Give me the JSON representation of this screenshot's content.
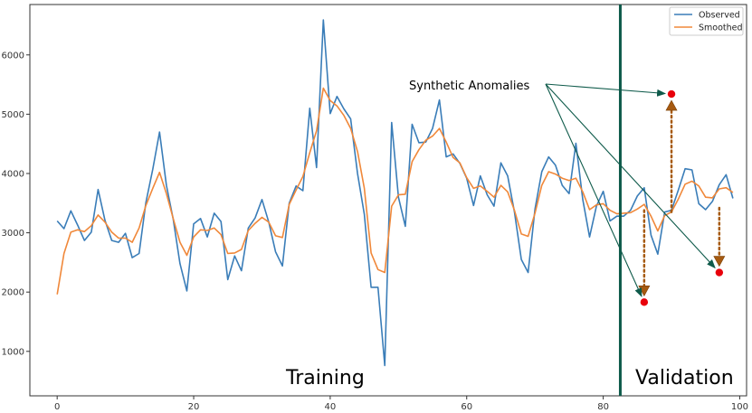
{
  "chart_data": {
    "type": "line",
    "title": "",
    "xlabel": "",
    "ylabel": "",
    "xlim": [
      -4,
      101
    ],
    "ylim": [
      250,
      6850
    ],
    "x_ticks": [
      0,
      20,
      40,
      60,
      80,
      100
    ],
    "y_ticks": [
      1000,
      2000,
      3000,
      4000,
      5000,
      6000
    ],
    "grid": false,
    "legend_position": "top-right",
    "x": [
      0,
      1,
      2,
      3,
      4,
      5,
      6,
      7,
      8,
      9,
      10,
      11,
      12,
      13,
      14,
      15,
      16,
      17,
      18,
      19,
      20,
      21,
      22,
      23,
      24,
      25,
      26,
      27,
      28,
      29,
      30,
      31,
      32,
      33,
      34,
      35,
      36,
      37,
      38,
      39,
      40,
      41,
      42,
      43,
      44,
      45,
      46,
      47,
      48,
      49,
      50,
      51,
      52,
      53,
      54,
      55,
      56,
      57,
      58,
      59,
      60,
      61,
      62,
      63,
      64,
      65,
      66,
      67,
      68,
      69,
      70,
      71,
      72,
      73,
      74,
      75,
      76,
      77,
      78,
      79,
      80,
      81,
      82,
      83,
      84,
      85,
      86,
      87,
      88,
      89,
      90,
      91,
      92,
      93,
      94,
      95,
      96,
      97,
      98,
      99
    ],
    "series": [
      {
        "name": "Observed",
        "color": "#3a7db8",
        "values": [
          3200,
          3070,
          3370,
          3130,
          2870,
          3010,
          3730,
          3210,
          2870,
          2840,
          2990,
          2580,
          2650,
          3510,
          4070,
          4700,
          3800,
          3230,
          2480,
          2020,
          3150,
          3240,
          2930,
          3330,
          3190,
          2210,
          2610,
          2360,
          3080,
          3250,
          3560,
          3180,
          2680,
          2440,
          3500,
          3790,
          3710,
          5100,
          4100,
          6590,
          5010,
          5300,
          5090,
          4920,
          4000,
          3310,
          2080,
          2080,
          760,
          4860,
          3600,
          3110,
          4830,
          4520,
          4530,
          4760,
          5240,
          4280,
          4330,
          4170,
          3920,
          3460,
          3960,
          3640,
          3450,
          4180,
          3960,
          3350,
          2550,
          2330,
          3400,
          4030,
          4280,
          4140,
          3800,
          3660,
          4510,
          3560,
          2930,
          3450,
          3700,
          3200,
          3280,
          3280,
          3380,
          3620,
          3760,
          2960,
          2640,
          3350,
          3380,
          3720,
          4080,
          4060,
          3490,
          3390,
          3530,
          3810,
          3980,
          3580
        ]
      },
      {
        "name": "Smoothed",
        "color": "#f0883a",
        "values": [
          1960,
          2650,
          3010,
          3050,
          3020,
          3120,
          3300,
          3180,
          3010,
          2910,
          2910,
          2840,
          3080,
          3460,
          3750,
          4020,
          3660,
          3240,
          2840,
          2620,
          2930,
          3050,
          3040,
          3080,
          2970,
          2650,
          2660,
          2720,
          3040,
          3160,
          3260,
          3180,
          2950,
          2920,
          3480,
          3720,
          3950,
          4350,
          4720,
          5440,
          5230,
          5140,
          4980,
          4760,
          4370,
          3750,
          2660,
          2380,
          2330,
          3450,
          3640,
          3650,
          4200,
          4400,
          4560,
          4630,
          4760,
          4530,
          4270,
          4180,
          3930,
          3750,
          3790,
          3700,
          3600,
          3800,
          3690,
          3380,
          2980,
          2940,
          3330,
          3800,
          4030,
          3990,
          3920,
          3880,
          3920,
          3690,
          3390,
          3470,
          3490,
          3380,
          3320,
          3330,
          3340,
          3400,
          3480,
          3280,
          3030,
          3290,
          3350,
          3570,
          3820,
          3870,
          3790,
          3600,
          3590,
          3740,
          3760,
          3680
        ]
      }
    ],
    "split_line": {
      "x": 82.5,
      "color": "#0e5a4a"
    },
    "region_labels": {
      "left": "Training",
      "right": "Validation"
    },
    "annotation": {
      "text": "Synthetic Anomalies",
      "color": "#0e5a4a",
      "anomaly_color": "#e8000b",
      "arrow_color": "#a65a10",
      "anomalies": [
        {
          "x": 86,
          "y": 1830,
          "from": 3380
        },
        {
          "x": 90,
          "y": 5340,
          "from": 3350
        },
        {
          "x": 97,
          "y": 2330,
          "from": 3420
        }
      ]
    }
  }
}
